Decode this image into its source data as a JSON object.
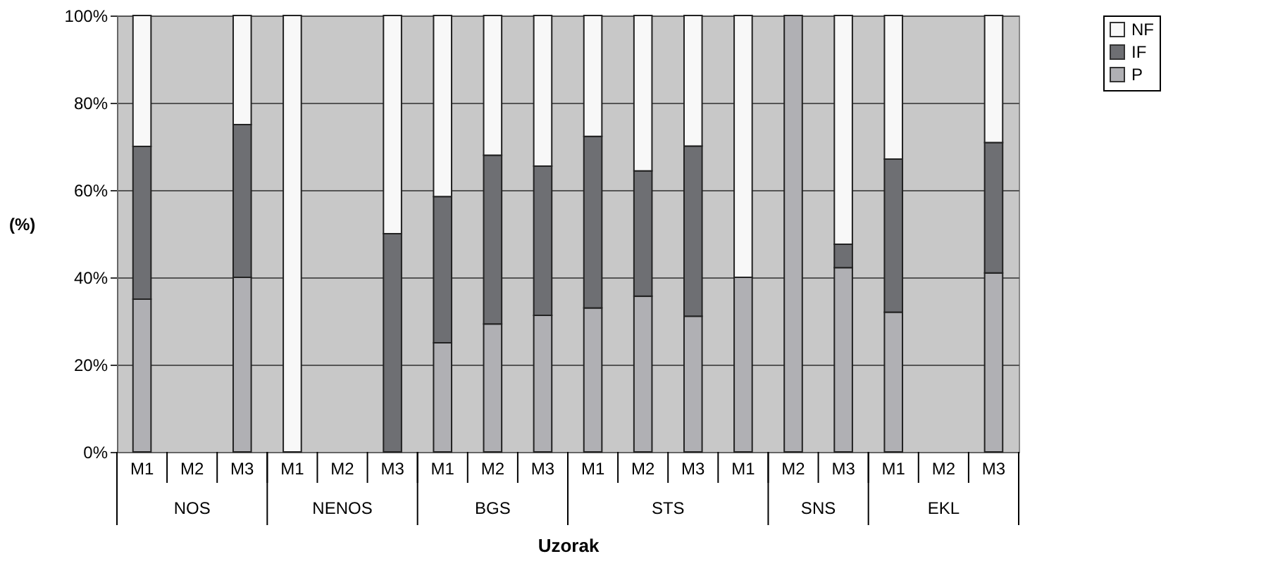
{
  "chart_data": {
    "type": "bar",
    "stacked": true,
    "xlabel": "Uzorak",
    "ylabel": "(%)",
    "categories": [
      "M1",
      "M2",
      "M3",
      "M1",
      "M2",
      "M3",
      "M1",
      "M2",
      "M3",
      "M1",
      "M2",
      "M3",
      "M1",
      "M2",
      "M3",
      "M1",
      "M2",
      "M3"
    ],
    "annotations": [
      "NOS",
      "NENOS",
      "BGS",
      "STS",
      "SNS",
      "EKL"
    ],
    "series": [
      {
        "name": "P",
        "color": "#b0b0b4",
        "values": [
          35,
          0,
          40,
          0,
          0,
          0,
          25,
          29.3,
          31.3,
          33,
          35.7,
          31.1,
          40,
          100,
          42.2,
          32,
          0,
          41
        ]
      },
      {
        "name": "IF",
        "color": "#6e6f73",
        "values": [
          35,
          0,
          35,
          0,
          0,
          50,
          33.5,
          38.7,
          34.2,
          39.3,
          28.7,
          39,
          0,
          0,
          5.4,
          35.1,
          0,
          29.9
        ]
      },
      {
        "name": "NF",
        "color": "#f8f8f8",
        "values": [
          30,
          0,
          25,
          100,
          0,
          50,
          41.5,
          32,
          34.5,
          27.7,
          35.6,
          29.9,
          60,
          0,
          52.4,
          32.9,
          0,
          29.1
        ]
      }
    ],
    "ylim": [
      0,
      100
    ],
    "yticks": [
      {
        "value": 0,
        "label": "0%"
      },
      {
        "value": 20,
        "label": "20%"
      },
      {
        "value": 40,
        "label": "40%"
      },
      {
        "value": 60,
        "label": "60%"
      },
      {
        "value": 80,
        "label": "80%"
      },
      {
        "value": 100,
        "label": "100%"
      }
    ],
    "grid": "y",
    "legend": "right"
  }
}
